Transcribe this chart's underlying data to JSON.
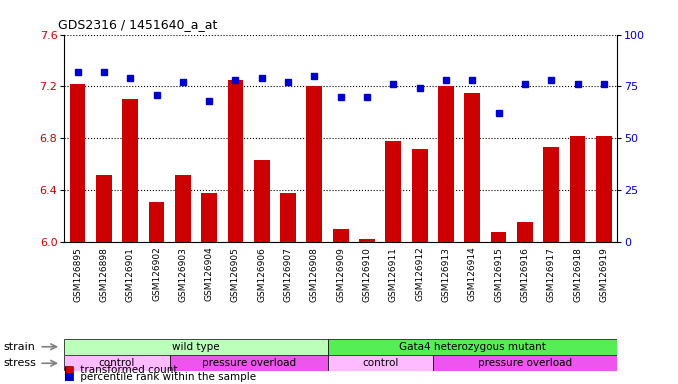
{
  "title": "GDS2316 / 1451640_a_at",
  "samples": [
    "GSM126895",
    "GSM126898",
    "GSM126901",
    "GSM126902",
    "GSM126903",
    "GSM126904",
    "GSM126905",
    "GSM126906",
    "GSM126907",
    "GSM126908",
    "GSM126909",
    "GSM126910",
    "GSM126911",
    "GSM126912",
    "GSM126913",
    "GSM126914",
    "GSM126915",
    "GSM126916",
    "GSM126917",
    "GSM126918",
    "GSM126919"
  ],
  "transformed_count": [
    7.22,
    6.52,
    7.1,
    6.31,
    6.52,
    6.38,
    7.25,
    6.63,
    6.38,
    7.2,
    6.1,
    6.02,
    6.78,
    6.72,
    7.2,
    7.15,
    6.08,
    6.15,
    6.73,
    6.82,
    6.82
  ],
  "percentile_rank": [
    82,
    82,
    79,
    71,
    77,
    68,
    78,
    79,
    77,
    80,
    70,
    70,
    76,
    74,
    78,
    78,
    62,
    76,
    78,
    76,
    76
  ],
  "ylim_left": [
    6.0,
    7.6
  ],
  "ylim_right": [
    0,
    100
  ],
  "yticks_left": [
    6.0,
    6.4,
    6.8,
    7.2,
    7.6
  ],
  "yticks_right": [
    0,
    25,
    50,
    75,
    100
  ],
  "strain_groups": [
    {
      "label": "wild type",
      "start": 0,
      "end": 10,
      "color": "#bbffbb"
    },
    {
      "label": "Gata4 heterozygous mutant",
      "start": 10,
      "end": 21,
      "color": "#55ee55"
    }
  ],
  "stress_groups": [
    {
      "label": "control",
      "start": 0,
      "end": 4,
      "color": "#ffbbff"
    },
    {
      "label": "pressure overload",
      "start": 4,
      "end": 10,
      "color": "#ee55ee"
    },
    {
      "label": "control",
      "start": 10,
      "end": 14,
      "color": "#ffbbff"
    },
    {
      "label": "pressure overload",
      "start": 14,
      "end": 21,
      "color": "#ee55ee"
    }
  ],
  "bar_color": "#cc0000",
  "dot_color": "#0000cc",
  "bar_width": 0.6,
  "legend_items": [
    {
      "label": "transformed count",
      "color": "#cc0000"
    },
    {
      "label": "percentile rank within the sample",
      "color": "#0000cc"
    }
  ],
  "bg_color": "#e8e8e8"
}
